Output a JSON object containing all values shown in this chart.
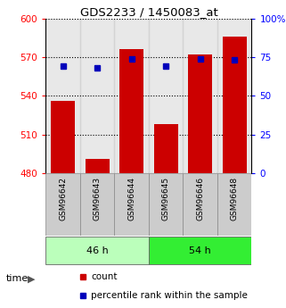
{
  "title": "GDS2233 / 1450083_at",
  "samples": [
    "GSM96642",
    "GSM96643",
    "GSM96644",
    "GSM96645",
    "GSM96646",
    "GSM96648"
  ],
  "bar_bottom": 480,
  "bar_tops": [
    536,
    491,
    576,
    518,
    572,
    586
  ],
  "percentile_values": [
    563,
    562,
    569,
    563,
    569,
    568
  ],
  "ylim_left": [
    480,
    600
  ],
  "ylim_right": [
    0,
    100
  ],
  "yticks_left": [
    480,
    510,
    540,
    570,
    600
  ],
  "yticks_right": [
    0,
    25,
    50,
    75,
    100
  ],
  "ytick_labels_right": [
    "0",
    "25",
    "50",
    "75",
    "100%"
  ],
  "groups": [
    {
      "label": "46 h",
      "indices": [
        0,
        1,
        2
      ]
    },
    {
      "label": "54 h",
      "indices": [
        3,
        4,
        5
      ]
    }
  ],
  "group_light_color": "#bbffbb",
  "group_bright_color": "#33ee33",
  "bar_color": "#cc0000",
  "blue_color": "#0000bb",
  "bg_color": "#ffffff",
  "label_bg_color": "#cccccc",
  "time_label": "time",
  "legend_count": "count",
  "legend_percentile": "percentile rank within the sample"
}
